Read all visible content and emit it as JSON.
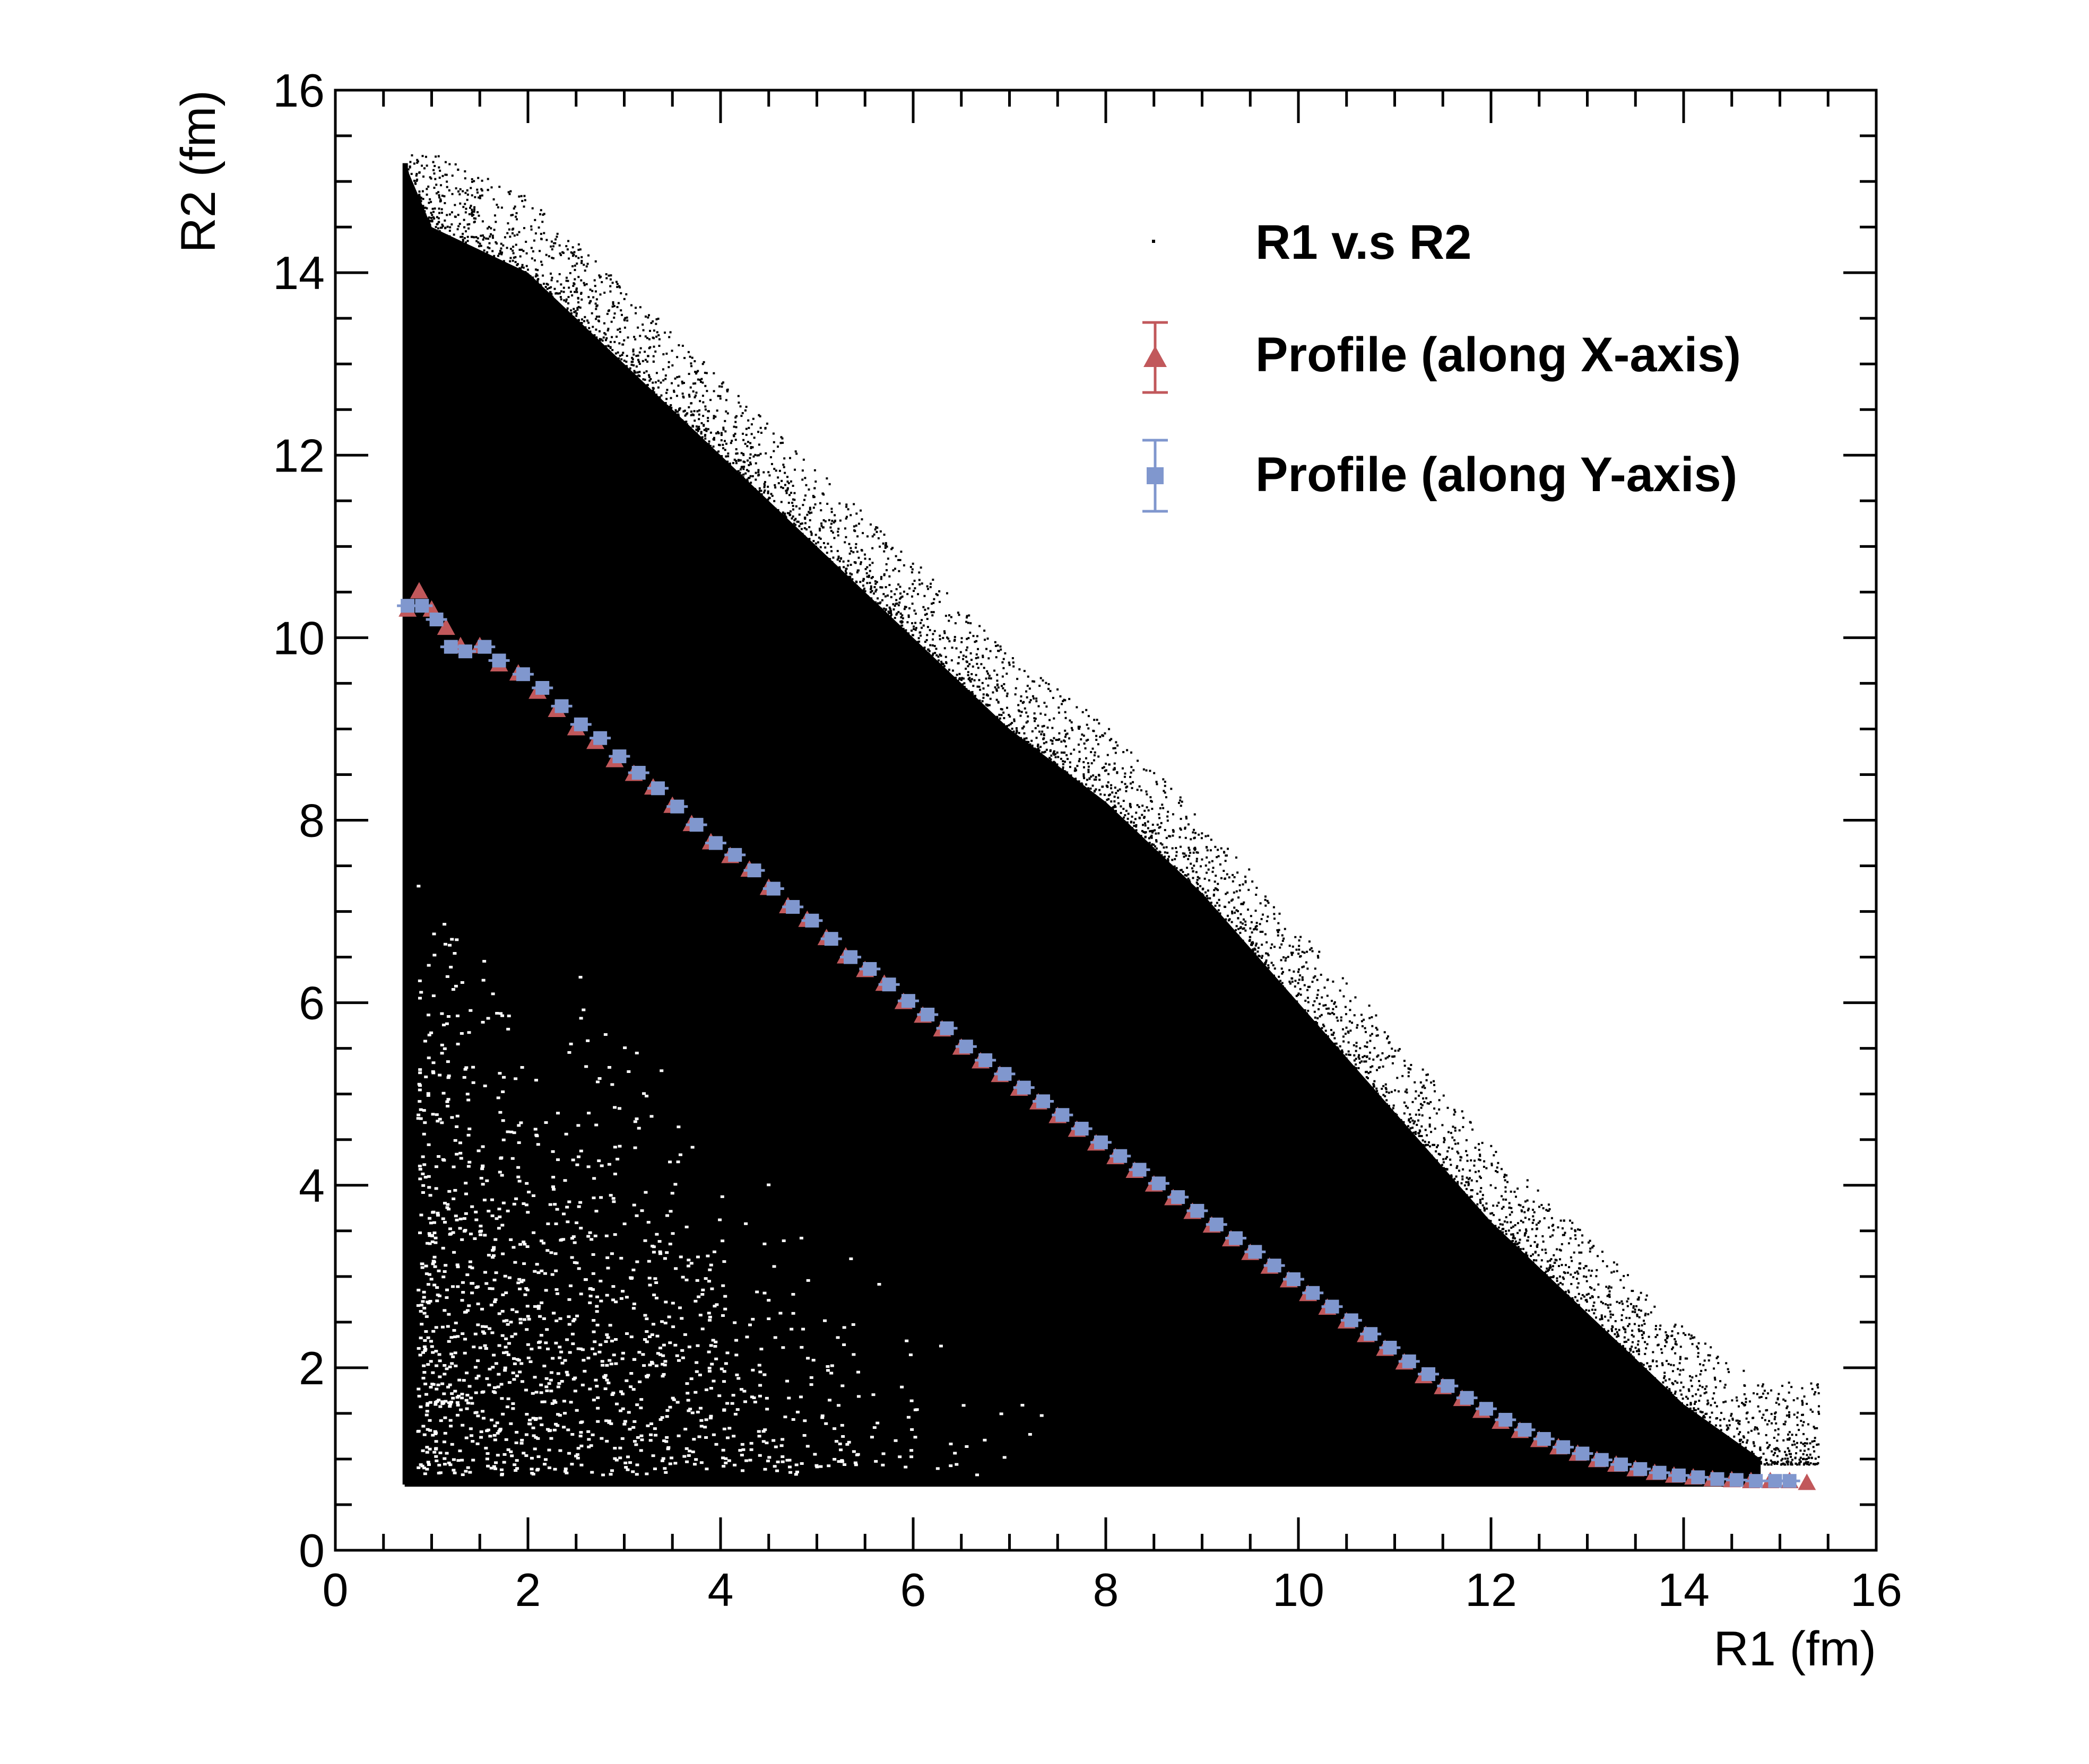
{
  "chart_data": {
    "type": "scatter",
    "title": "",
    "xlabel": "R1 (fm)",
    "ylabel": "R2 (fm)",
    "xlim": [
      0,
      16
    ],
    "ylim": [
      0,
      16
    ],
    "grid": false,
    "legend_position": "top-right",
    "x_ticks": [
      "0",
      "2",
      "4",
      "6",
      "8",
      "10",
      "12",
      "14",
      "16"
    ],
    "y_ticks": [
      "0",
      "2",
      "4",
      "6",
      "8",
      "10",
      "12",
      "14",
      "16"
    ],
    "scatter_region": {
      "description_values": {
        "min_x": 0.72,
        "min_y": 0.72,
        "upper_edge": [
          [
            0.72,
            15.2
          ],
          [
            1,
            14.5
          ],
          [
            2,
            14.0
          ],
          [
            3,
            13.0
          ],
          [
            4,
            12.0
          ],
          [
            5,
            11.0
          ],
          [
            6,
            10.0
          ],
          [
            7,
            9.0
          ],
          [
            8,
            8.2
          ],
          [
            9,
            7.2
          ],
          [
            10,
            6.0
          ],
          [
            11,
            4.8
          ],
          [
            12,
            3.6
          ],
          [
            13,
            2.6
          ],
          [
            14,
            1.6
          ],
          [
            14.8,
            1.0
          ]
        ],
        "right_end_x": 14.8
      }
    },
    "series": [
      {
        "name": "R1 v.s R2",
        "marker": "dot",
        "color": "#000000"
      },
      {
        "name": "Profile (along X-axis)",
        "marker": "triangle",
        "color": "#c1585b",
        "points": [
          [
            0.75,
            10.3
          ],
          [
            0.87,
            10.5
          ],
          [
            1.0,
            10.3
          ],
          [
            1.15,
            10.1
          ],
          [
            1.3,
            9.9
          ],
          [
            1.5,
            9.9
          ],
          [
            1.7,
            9.7
          ],
          [
            1.9,
            9.6
          ],
          [
            2.1,
            9.4
          ],
          [
            2.3,
            9.2
          ],
          [
            2.5,
            9.0
          ],
          [
            2.7,
            8.85
          ],
          [
            2.9,
            8.65
          ],
          [
            3.1,
            8.5
          ],
          [
            3.3,
            8.35
          ],
          [
            3.5,
            8.15
          ],
          [
            3.7,
            7.95
          ],
          [
            3.9,
            7.75
          ],
          [
            4.1,
            7.6
          ],
          [
            4.3,
            7.45
          ],
          [
            4.5,
            7.25
          ],
          [
            4.7,
            7.05
          ],
          [
            4.9,
            6.9
          ],
          [
            5.1,
            6.7
          ],
          [
            5.3,
            6.5
          ],
          [
            5.5,
            6.35
          ],
          [
            5.7,
            6.2
          ],
          [
            5.9,
            6.0
          ],
          [
            6.1,
            5.85
          ],
          [
            6.3,
            5.7
          ],
          [
            6.5,
            5.5
          ],
          [
            6.7,
            5.35
          ],
          [
            6.9,
            5.2
          ],
          [
            7.1,
            5.05
          ],
          [
            7.3,
            4.9
          ],
          [
            7.5,
            4.75
          ],
          [
            7.7,
            4.6
          ],
          [
            7.9,
            4.45
          ],
          [
            8.1,
            4.3
          ],
          [
            8.3,
            4.15
          ],
          [
            8.5,
            4.0
          ],
          [
            8.7,
            3.85
          ],
          [
            8.9,
            3.7
          ],
          [
            9.1,
            3.55
          ],
          [
            9.3,
            3.4
          ],
          [
            9.5,
            3.25
          ],
          [
            9.7,
            3.1
          ],
          [
            9.9,
            2.95
          ],
          [
            10.1,
            2.8
          ],
          [
            10.3,
            2.65
          ],
          [
            10.5,
            2.5
          ],
          [
            10.7,
            2.35
          ],
          [
            10.9,
            2.2
          ],
          [
            11.1,
            2.05
          ],
          [
            11.3,
            1.9
          ],
          [
            11.5,
            1.78
          ],
          [
            11.7,
            1.65
          ],
          [
            11.9,
            1.52
          ],
          [
            12.1,
            1.4
          ],
          [
            12.3,
            1.3
          ],
          [
            12.5,
            1.2
          ],
          [
            12.7,
            1.12
          ],
          [
            12.9,
            1.05
          ],
          [
            13.1,
            0.98
          ],
          [
            13.3,
            0.93
          ],
          [
            13.5,
            0.88
          ],
          [
            13.7,
            0.84
          ],
          [
            13.9,
            0.81
          ],
          [
            14.1,
            0.79
          ],
          [
            14.3,
            0.77
          ],
          [
            14.5,
            0.76
          ],
          [
            14.7,
            0.75
          ],
          [
            14.9,
            0.75
          ],
          [
            15.1,
            0.75
          ],
          [
            15.28,
            0.73
          ]
        ]
      },
      {
        "name": "Profile (along Y-axis)",
        "marker": "square-cross",
        "color": "#8097ce",
        "points": [
          [
            0.75,
            10.35
          ],
          [
            0.9,
            10.35
          ],
          [
            1.05,
            10.2
          ],
          [
            1.2,
            9.9
          ],
          [
            1.35,
            9.85
          ],
          [
            1.55,
            9.9
          ],
          [
            1.7,
            9.75
          ],
          [
            1.95,
            9.6
          ],
          [
            2.15,
            9.45
          ],
          [
            2.35,
            9.25
          ],
          [
            2.55,
            9.05
          ],
          [
            2.75,
            8.9
          ],
          [
            2.95,
            8.7
          ],
          [
            3.15,
            8.52
          ],
          [
            3.35,
            8.35
          ],
          [
            3.55,
            8.15
          ],
          [
            3.75,
            7.95
          ],
          [
            3.95,
            7.75
          ],
          [
            4.15,
            7.62
          ],
          [
            4.35,
            7.45
          ],
          [
            4.55,
            7.25
          ],
          [
            4.75,
            7.05
          ],
          [
            4.95,
            6.9
          ],
          [
            5.15,
            6.7
          ],
          [
            5.35,
            6.5
          ],
          [
            5.55,
            6.37
          ],
          [
            5.75,
            6.2
          ],
          [
            5.95,
            6.02
          ],
          [
            6.15,
            5.87
          ],
          [
            6.35,
            5.72
          ],
          [
            6.55,
            5.52
          ],
          [
            6.75,
            5.37
          ],
          [
            6.95,
            5.22
          ],
          [
            7.15,
            5.07
          ],
          [
            7.35,
            4.92
          ],
          [
            7.55,
            4.77
          ],
          [
            7.75,
            4.62
          ],
          [
            7.95,
            4.47
          ],
          [
            8.15,
            4.32
          ],
          [
            8.35,
            4.17
          ],
          [
            8.55,
            4.02
          ],
          [
            8.75,
            3.87
          ],
          [
            8.95,
            3.72
          ],
          [
            9.15,
            3.57
          ],
          [
            9.35,
            3.42
          ],
          [
            9.55,
            3.27
          ],
          [
            9.75,
            3.12
          ],
          [
            9.95,
            2.97
          ],
          [
            10.15,
            2.82
          ],
          [
            10.35,
            2.67
          ],
          [
            10.55,
            2.52
          ],
          [
            10.75,
            2.37
          ],
          [
            10.95,
            2.22
          ],
          [
            11.15,
            2.07
          ],
          [
            11.35,
            1.93
          ],
          [
            11.55,
            1.8
          ],
          [
            11.75,
            1.67
          ],
          [
            11.95,
            1.55
          ],
          [
            12.15,
            1.43
          ],
          [
            12.35,
            1.32
          ],
          [
            12.55,
            1.22
          ],
          [
            12.75,
            1.13
          ],
          [
            12.95,
            1.06
          ],
          [
            13.15,
            0.99
          ],
          [
            13.35,
            0.94
          ],
          [
            13.55,
            0.89
          ],
          [
            13.75,
            0.85
          ],
          [
            13.95,
            0.82
          ],
          [
            14.15,
            0.8
          ],
          [
            14.35,
            0.78
          ],
          [
            14.55,
            0.77
          ],
          [
            14.75,
            0.76
          ],
          [
            14.95,
            0.76
          ],
          [
            15.1,
            0.76
          ]
        ]
      }
    ]
  }
}
